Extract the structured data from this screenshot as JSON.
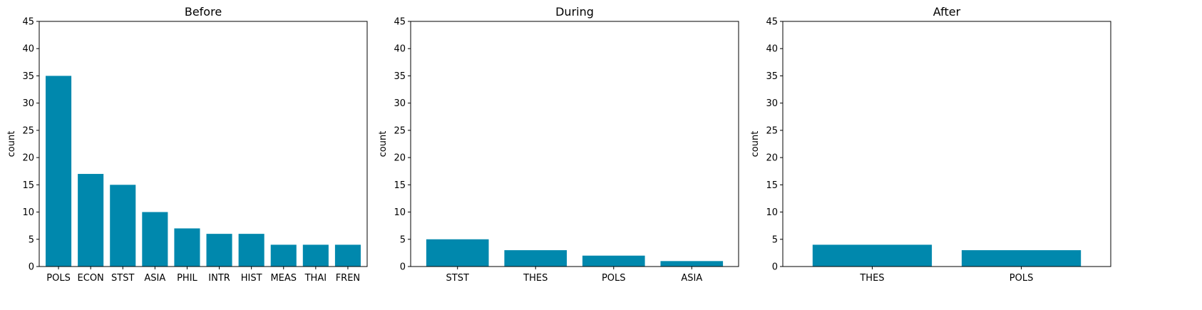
{
  "chart_data": [
    {
      "type": "bar",
      "title": "Before",
      "xlabel": "",
      "ylabel": "count",
      "ylim": [
        0,
        45
      ],
      "yticks": [
        0,
        5,
        10,
        15,
        20,
        25,
        30,
        35,
        40,
        45
      ],
      "categories": [
        "POLS",
        "ECON",
        "STST",
        "ASIA",
        "PHIL",
        "INTR",
        "HIST",
        "MEAS",
        "THAI",
        "FREN"
      ],
      "values": [
        35,
        17,
        15,
        10,
        7,
        6,
        6,
        4,
        4,
        4
      ],
      "color": "#0088ad",
      "grid": false
    },
    {
      "type": "bar",
      "title": "During",
      "xlabel": "",
      "ylabel": "count",
      "ylim": [
        0,
        45
      ],
      "yticks": [
        0,
        5,
        10,
        15,
        20,
        25,
        30,
        35,
        40,
        45
      ],
      "categories": [
        "STST",
        "THES",
        "POLS",
        "ASIA"
      ],
      "values": [
        5,
        3,
        2,
        1
      ],
      "color": "#0088ad",
      "grid": false
    },
    {
      "type": "bar",
      "title": "After",
      "xlabel": "",
      "ylabel": "count",
      "ylim": [
        0,
        45
      ],
      "yticks": [
        0,
        5,
        10,
        15,
        20,
        25,
        30,
        35,
        40,
        45
      ],
      "categories": [
        "THES",
        "POLS"
      ],
      "values": [
        4,
        3
      ],
      "color": "#0088ad",
      "grid": false
    }
  ]
}
